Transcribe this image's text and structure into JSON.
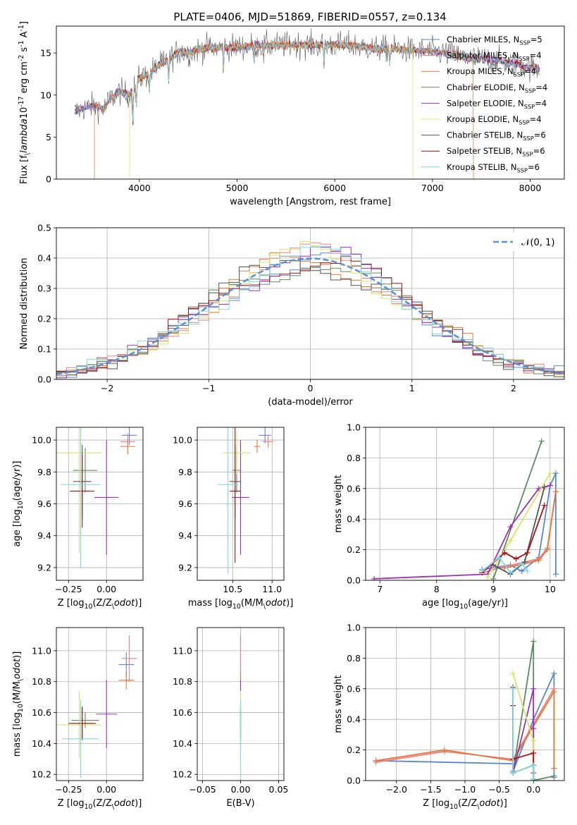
{
  "figure_title": "PLATE=0406, MJD=51869, FIBERID=0557, z=0.134",
  "colors": {
    "Chabrier MILES": "#5b86d6",
    "Salpeter MILES": "#f08080",
    "Kroupa MILES": "#e07b39",
    "Chabrier ELODIE": "#5f8a5f",
    "Salpeter ELODIE": "#9c33b5",
    "Kroupa ELODIE": "#d8e36a",
    "Chabrier STELIB": "#555555",
    "Salpeter STELIB": "#aa1111",
    "Kroupa STELIB": "#7fd8e6",
    "normal": "#5b8fd6"
  },
  "chart_data": [
    {
      "id": "spectrum",
      "type": "line",
      "title": "PLATE=0406, MJD=51869, FIBERID=0557, z=0.134",
      "xlabel": "wavelength [Angstrom, rest frame]",
      "ylabel": "Flux [f$_\\lambda$10$^{-17}$ erg cm$^{-2}$ s$^{-1}$ A$^{-1}$]",
      "xlim": [
        3150,
        8350
      ],
      "ylim": [
        0,
        18.2
      ],
      "xticks": [
        4000,
        5000,
        6000,
        7000,
        8000
      ],
      "yticks": [
        0,
        5,
        10,
        15
      ],
      "grid": false,
      "legend_position": "right",
      "legend": [
        "Chabrier MILES, N$_{SSP}$=5",
        "Salpeter MILES, N$_{SSP}$=4",
        "Kroupa MILES, N$_{SSP}$=4",
        "Chabrier ELODIE, N$_{SSP}$=4",
        "Salpeter ELODIE, N$_{SSP}$=4",
        "Kroupa ELODIE, N$_{SSP}$=4",
        "Chabrier STELIB, N$_{SSP}$=6",
        "Salpeter STELIB, N$_{SSP}$=6",
        "Kroupa STELIB, N$_{SSP}$=6"
      ],
      "continuum": {
        "x": [
          3340,
          3500,
          3640,
          3700,
          3800,
          3900,
          4000,
          4100,
          4200,
          4300,
          4400,
          4500,
          4600,
          4700,
          4800,
          4900,
          5000,
          5200,
          5400,
          5600,
          5800,
          6000,
          6200,
          6400,
          6600,
          6800,
          7000,
          7200,
          7400,
          7600,
          7800,
          8000,
          8100
        ],
        "y": [
          8.0,
          8.7,
          8.4,
          9.5,
          10.4,
          10.0,
          12.0,
          12.6,
          13.6,
          14.2,
          15.2,
          15.0,
          15.4,
          15.6,
          15.6,
          15.7,
          15.7,
          15.9,
          15.9,
          16.0,
          15.9,
          16.0,
          15.9,
          15.5,
          15.5,
          15.3,
          15.2,
          14.8,
          14.3,
          14.3,
          13.8,
          13.3,
          13.0
        ]
      },
      "truncated_models": [
        {
          "model": "Kroupa MILES",
          "x_start": 3540,
          "x_end": 7420
        },
        {
          "model": "Kroupa ELODIE",
          "x_start": 3900,
          "x_end": 6800
        }
      ]
    },
    {
      "id": "residuals",
      "type": "line",
      "xlabel": "(data-model)/error",
      "ylabel": "Normed distribution",
      "xlim": [
        -2.5,
        2.5
      ],
      "ylim": [
        0,
        0.5
      ],
      "xticks": [
        -2,
        -1,
        0,
        1,
        2
      ],
      "yticks": [
        0.0,
        0.1,
        0.2,
        0.3,
        0.4,
        0.5
      ],
      "grid": true,
      "legend_position": "upper right",
      "legend": [
        "$\\mathcal{N}(0,1)$"
      ],
      "bin_width": 0.1
    },
    {
      "id": "z-age",
      "type": "scatter",
      "xlabel": "Z [log$_{10}$(Z/Z$_\\odot$)]",
      "ylabel": "age  [log$_{10}$(age/yr)]",
      "xlim": [
        -0.33,
        0.24
      ],
      "ylim": [
        9.12,
        10.08
      ],
      "xticks": [
        -0.25,
        0.0
      ],
      "yticks": [
        9.2,
        9.4,
        9.6,
        9.8,
        10.0
      ],
      "grid": true,
      "points": [
        {
          "model": "Chabrier MILES",
          "x": 0.15,
          "y": 10.03,
          "xerr": 0.05,
          "yerr": 0.06
        },
        {
          "model": "Salpeter MILES",
          "x": 0.14,
          "y": 9.99,
          "xerr": 0.05,
          "yerr": 0.05
        },
        {
          "model": "Kroupa MILES",
          "x": 0.14,
          "y": 9.96,
          "xerr": 0.05,
          "yerr": 0.05
        },
        {
          "model": "Chabrier ELODIE",
          "x": -0.14,
          "y": 9.81,
          "xerr": 0.08,
          "yerr": 0.14
        },
        {
          "model": "Salpeter ELODIE",
          "x": 0.0,
          "y": 9.64,
          "xerr": 0.08,
          "yerr": 0.36
        },
        {
          "model": "Kroupa ELODIE",
          "x": -0.18,
          "y": 9.92,
          "xerr": 0.15,
          "yerr": 0.63
        },
        {
          "model": "Chabrier STELIB",
          "x": -0.16,
          "y": 9.74,
          "xerr": 0.06,
          "yerr": 0.23
        },
        {
          "model": "Salpeter STELIB",
          "x": -0.16,
          "y": 9.68,
          "xerr": 0.08,
          "yerr": 0.23
        },
        {
          "model": "Kroupa STELIB",
          "x": -0.17,
          "y": 9.72,
          "xerr": 0.13,
          "yerr": 0.52
        }
      ]
    },
    {
      "id": "mass-age",
      "type": "scatter",
      "xlabel": "mass [log$_{10}$(M/M$_\\odot$)]",
      "ylabel": "",
      "xlim": [
        10.05,
        11.15
      ],
      "ylim": [
        9.12,
        10.08
      ],
      "xticks": [
        10.5,
        11.0
      ],
      "yticks": [
        9.2,
        9.4,
        9.6,
        9.8,
        10.0
      ],
      "grid": true,
      "points": [
        {
          "model": "Chabrier MILES",
          "x": 10.91,
          "y": 10.03,
          "xerr": 0.08,
          "yerr": 0.05
        },
        {
          "model": "Salpeter MILES",
          "x": 10.95,
          "y": 9.99,
          "xerr": 0.07,
          "yerr": 0.04
        },
        {
          "model": "Kroupa MILES",
          "x": 10.81,
          "y": 9.96,
          "xerr": 0.04,
          "yerr": 0.04
        },
        {
          "model": "Chabrier ELODIE",
          "x": 10.55,
          "y": 9.81,
          "xerr": 0.05,
          "yerr": 0.14
        },
        {
          "model": "Salpeter ELODIE",
          "x": 10.6,
          "y": 9.64,
          "xerr": 0.11,
          "yerr": 0.36
        },
        {
          "model": "Kroupa ELODIE",
          "x": 10.55,
          "y": 9.92,
          "xerr": 0.18,
          "yerr": 0.13
        },
        {
          "model": "Chabrier STELIB",
          "x": 10.53,
          "y": 9.74,
          "xerr": 0.07,
          "yerr": 0.23
        },
        {
          "model": "Salpeter STELIB",
          "x": 10.53,
          "y": 9.68,
          "xerr": 0.07,
          "yerr": 0.45
        },
        {
          "model": "Kroupa STELIB",
          "x": 10.44,
          "y": 9.72,
          "xerr": 0.13,
          "yerr": 0.56
        }
      ]
    },
    {
      "id": "age-weight",
      "type": "line",
      "xlabel": "age  [log$_{10}$(age/yr)]",
      "ylabel": "mass weight",
      "xlim": [
        6.75,
        10.25
      ],
      "ylim": [
        0,
        1.0
      ],
      "xticks": [
        7,
        8,
        9,
        10
      ],
      "yticks": [
        0.0,
        0.2,
        0.4,
        0.6,
        0.8,
        1.0
      ],
      "grid": true,
      "series": [
        {
          "model": "Chabrier MILES",
          "x": [
            8.8,
            9.3,
            9.5,
            9.8,
            10.0,
            10.1,
            10.1
          ],
          "y": [
            0.07,
            0.1,
            0.06,
            0.15,
            0.62,
            0.7,
            0.04
          ]
        },
        {
          "model": "Salpeter MILES",
          "x": [
            8.8,
            9.2,
            9.8,
            9.95,
            10.1
          ],
          "y": [
            0.05,
            0.09,
            0.14,
            0.21,
            0.58
          ]
        },
        {
          "model": "Kroupa MILES",
          "x": [
            9.2,
            9.8,
            9.95,
            10.1
          ],
          "y": [
            0.08,
            0.13,
            0.2,
            0.58
          ]
        },
        {
          "model": "Chabrier ELODIE",
          "x": [
            9.0,
            9.85
          ],
          "y": [
            0.01,
            0.91
          ]
        },
        {
          "model": "Salpeter ELODIE",
          "x": [
            6.9,
            8.9,
            9.3,
            9.8,
            10.0
          ],
          "y": [
            0.01,
            0.04,
            0.35,
            0.6,
            0.62
          ]
        },
        {
          "model": "Kroupa ELODIE",
          "x": [
            8.9,
            9.3,
            10.0
          ],
          "y": [
            0.02,
            0.26,
            0.7
          ]
        },
        {
          "model": "Chabrier STELIB",
          "x": [
            9.0,
            9.3,
            9.55,
            9.9
          ],
          "y": [
            0.1,
            0.04,
            0.12,
            0.61
          ]
        },
        {
          "model": "Salpeter STELIB",
          "x": [
            8.8,
            9.2,
            9.4,
            9.6,
            9.9
          ],
          "y": [
            0.05,
            0.18,
            0.14,
            0.18,
            0.49
          ]
        },
        {
          "model": "Kroupa STELIB",
          "x": [
            8.8,
            9.1,
            9.3,
            9.5,
            9.6
          ],
          "y": [
            0.06,
            0.15,
            0.05,
            0.11,
            0.06
          ]
        }
      ]
    },
    {
      "id": "z-mass",
      "type": "scatter",
      "xlabel": "Z [log$_{10}$(Z/Z$_\\odot$)]",
      "ylabel": "mass [log$_{10}$(M/M$_\\odot$)]",
      "xlim": [
        -0.33,
        0.24
      ],
      "ylim": [
        10.16,
        11.15
      ],
      "xticks": [
        -0.25,
        0.0
      ],
      "yticks": [
        10.2,
        10.4,
        10.6,
        10.8,
        11.0
      ],
      "grid": true,
      "points": [
        {
          "model": "Chabrier MILES",
          "x": 0.13,
          "y": 10.91,
          "xerr": 0.05,
          "yerr": 0.08
        },
        {
          "model": "Salpeter MILES",
          "x": 0.15,
          "y": 10.95,
          "xerr": 0.05,
          "yerr": 0.15
        },
        {
          "model": "Kroupa MILES",
          "x": 0.13,
          "y": 10.81,
          "xerr": 0.05,
          "yerr": 0.06
        },
        {
          "model": "Chabrier ELODIE",
          "x": -0.14,
          "y": 10.55,
          "xerr": 0.09,
          "yerr": 0.05
        },
        {
          "model": "Salpeter ELODIE",
          "x": 0.0,
          "y": 10.59,
          "xerr": 0.07,
          "yerr": 0.22
        },
        {
          "model": "Kroupa ELODIE",
          "x": -0.18,
          "y": 10.52,
          "xerr": 0.15,
          "yerr": 0.22
        },
        {
          "model": "Chabrier STELIB",
          "x": -0.16,
          "y": 10.53,
          "xerr": 0.08,
          "yerr": 0.11
        },
        {
          "model": "Salpeter STELIB",
          "x": -0.16,
          "y": 10.53,
          "xerr": 0.09,
          "yerr": 0.1
        },
        {
          "model": "Kroupa STELIB",
          "x": -0.17,
          "y": 10.43,
          "xerr": 0.12,
          "yerr": 0.25
        }
      ]
    },
    {
      "id": "ebv-mass",
      "type": "scatter",
      "xlabel": "E(B-V)",
      "ylabel": "",
      "xlim": [
        -0.057,
        0.057
      ],
      "ylim": [
        10.16,
        11.15
      ],
      "xticks": [
        -0.05,
        0.0,
        0.05
      ],
      "yticks": [
        10.2,
        10.4,
        10.6,
        10.8,
        11.0
      ],
      "grid": true,
      "points": [
        {
          "model": "Chabrier MILES",
          "x": 0.0,
          "y": 10.91,
          "xerr": 0.0,
          "yerr": 0.08
        },
        {
          "model": "Salpeter MILES",
          "x": 0.0,
          "y": 10.95,
          "xerr": 0.0,
          "yerr": 0.15
        },
        {
          "model": "Kroupa MILES",
          "x": 0.0,
          "y": 10.81,
          "xerr": 0.0,
          "yerr": 0.06
        },
        {
          "model": "Chabrier ELODIE",
          "x": 0.0,
          "y": 10.55,
          "xerr": 0.0,
          "yerr": 0.05
        },
        {
          "model": "Salpeter ELODIE",
          "x": 0.0,
          "y": 10.59,
          "xerr": 0.0,
          "yerr": 0.22
        },
        {
          "model": "Kroupa ELODIE",
          "x": 0.0,
          "y": 10.52,
          "xerr": 0.0,
          "yerr": 0.22
        },
        {
          "model": "Chabrier STELIB",
          "x": 0.0,
          "y": 10.53,
          "xerr": 0.0,
          "yerr": 0.11
        },
        {
          "model": "Salpeter STELIB",
          "x": 0.0,
          "y": 10.53,
          "xerr": 0.0,
          "yerr": 0.1
        },
        {
          "model": "Kroupa STELIB",
          "x": 0.0,
          "y": 10.43,
          "xerr": 0.0,
          "yerr": 0.25
        }
      ]
    },
    {
      "id": "z-weight",
      "type": "line",
      "xlabel": "Z [log$_{10}$(Z/Z$_\\odot$)]",
      "ylabel": "mass weight",
      "xlim": [
        -2.45,
        0.45
      ],
      "ylim": [
        0,
        1.0
      ],
      "xticks": [
        -2.0,
        -1.5,
        -1.0,
        -0.5,
        0.0
      ],
      "yticks": [
        0.0,
        0.2,
        0.4,
        0.6,
        0.8,
        1.0
      ],
      "grid": true,
      "series": [
        {
          "model": "Chabrier MILES",
          "x": [
            -2.3,
            -0.3,
            -0.3,
            0.0,
            0.3,
            0.3
          ],
          "y": [
            0.13,
            0.11,
            0.06,
            0.4,
            0.7,
            0.02
          ]
        },
        {
          "model": "Salpeter MILES",
          "x": [
            -2.3,
            -1.3,
            -0.3,
            0.3,
            0.3
          ],
          "y": [
            0.12,
            0.19,
            0.14,
            0.6,
            0.08
          ]
        },
        {
          "model": "Kroupa MILES",
          "x": [
            -2.3,
            -1.3,
            -0.3,
            0.3,
            0.3
          ],
          "y": [
            0.13,
            0.2,
            0.13,
            0.58,
            0.08
          ]
        },
        {
          "model": "Chabrier ELODIE",
          "x": [
            -0.3,
            0.0,
            0.0,
            0.3
          ],
          "y": [
            0.05,
            0.91,
            0.0,
            0.03
          ]
        },
        {
          "model": "Salpeter ELODIE",
          "x": [
            -0.3,
            0.0,
            0.0,
            0.0
          ],
          "y": [
            0.05,
            0.6,
            0.34,
            0.05
          ]
        },
        {
          "model": "Kroupa ELODIE",
          "x": [
            -0.3,
            0.0,
            0.0
          ],
          "y": [
            0.7,
            0.26,
            0.01
          ]
        },
        {
          "model": "Chabrier STELIB",
          "x": [
            -0.3,
            -0.3,
            0.0,
            0.0
          ],
          "y": [
            0.61,
            0.05,
            0.1,
            0.01
          ]
        },
        {
          "model": "Salpeter STELIB",
          "x": [
            -0.3,
            -0.3,
            0.0,
            0.0
          ],
          "y": [
            0.49,
            0.14,
            0.18,
            0.1
          ]
        },
        {
          "model": "Kroupa STELIB",
          "x": [
            -0.3,
            -0.3,
            0.0,
            0.0
          ],
          "y": [
            0.6,
            0.05,
            0.1,
            0.01
          ]
        }
      ]
    }
  ]
}
